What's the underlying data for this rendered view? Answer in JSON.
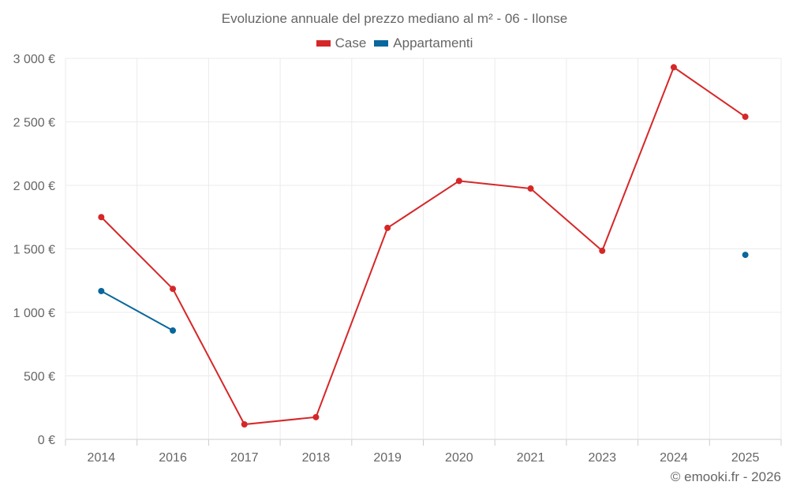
{
  "chart_data": {
    "type": "line",
    "title": "Evoluzione annuale del prezzo mediano al m² - 06 - Ilonse",
    "categories": [
      "2014",
      "2016",
      "2017",
      "2018",
      "2019",
      "2020",
      "2021",
      "2023",
      "2024",
      "2025"
    ],
    "series": [
      {
        "name": "Case",
        "color": "#d62728",
        "values": [
          1750,
          1185,
          118,
          175,
          1665,
          2035,
          1975,
          1485,
          2930,
          2540
        ]
      },
      {
        "name": "Appartamenti",
        "color": "#08679c",
        "values": [
          1168,
          857,
          null,
          null,
          null,
          null,
          null,
          null,
          null,
          1453
        ]
      }
    ],
    "ylim": [
      0,
      3000
    ],
    "yticks": [
      0,
      500,
      1000,
      1500,
      2000,
      2500,
      3000
    ],
    "ytick_labels": [
      "0 €",
      "500 €",
      "1 000 €",
      "1 500 €",
      "2 000 €",
      "2 500 €",
      "3 000 €"
    ],
    "grid": true,
    "legend": "top-center",
    "xlabel": "",
    "ylabel": ""
  },
  "credit": "© emooki.fr - 2026"
}
